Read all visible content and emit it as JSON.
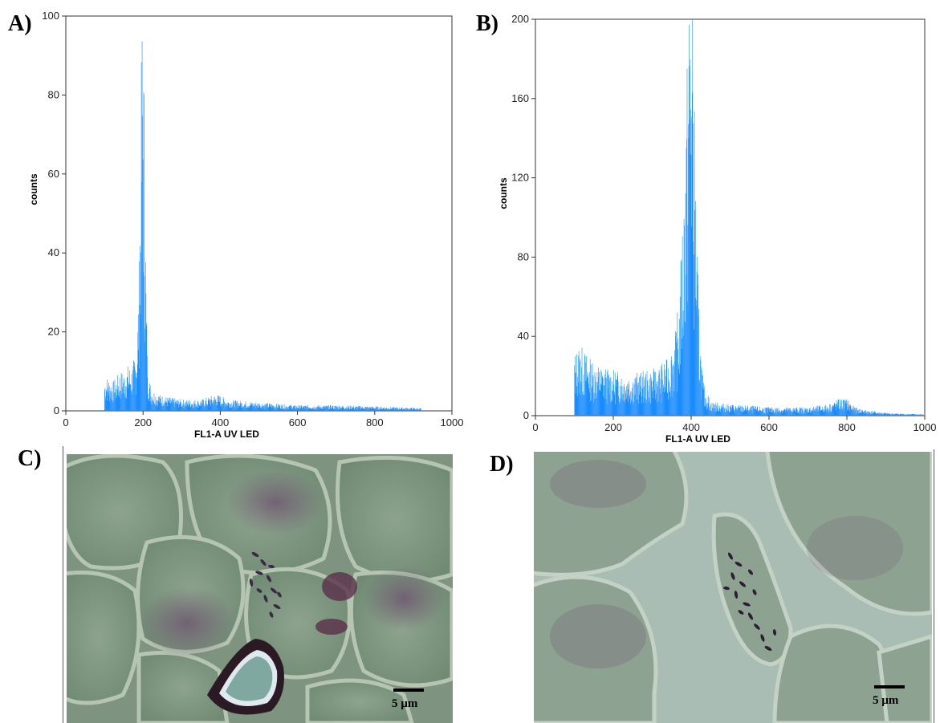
{
  "panel_labels": {
    "a": "A)",
    "b": "B)",
    "c": "C)",
    "d": "D)"
  },
  "colors": {
    "bar": "#1a8cff",
    "axis": "#333333"
  },
  "chart_data": [
    {
      "type": "bar",
      "panel": "A)",
      "xlabel": "FL1-A  UV LED",
      "ylabel": "counts",
      "xlim": [
        0,
        1000
      ],
      "ylim": [
        0,
        100
      ],
      "xticks": [
        0,
        200,
        400,
        600,
        800,
        1000
      ],
      "yticks": [
        0,
        20,
        40,
        60,
        80,
        100
      ],
      "grid": false,
      "data_range": [
        100,
        920
      ],
      "histogram_profile": [
        [
          100,
          6
        ],
        [
          110,
          6
        ],
        [
          120,
          5
        ],
        [
          130,
          6
        ],
        [
          140,
          7
        ],
        [
          150,
          7
        ],
        [
          160,
          8
        ],
        [
          170,
          8
        ],
        [
          180,
          10
        ],
        [
          185,
          15
        ],
        [
          190,
          30
        ],
        [
          193,
          48
        ],
        [
          196,
          68
        ],
        [
          198,
          75
        ],
        [
          200,
          72
        ],
        [
          202,
          60
        ],
        [
          205,
          40
        ],
        [
          208,
          20
        ],
        [
          212,
          8
        ],
        [
          220,
          4
        ],
        [
          240,
          3
        ],
        [
          260,
          2.5
        ],
        [
          300,
          2
        ],
        [
          350,
          2
        ],
        [
          390,
          3
        ],
        [
          420,
          2
        ],
        [
          500,
          1.5
        ],
        [
          600,
          1
        ],
        [
          700,
          1
        ],
        [
          800,
          0.8
        ],
        [
          920,
          0.5
        ]
      ]
    },
    {
      "type": "bar",
      "panel": "B)",
      "xlabel": "FL1-A  UV LED",
      "ylabel": "counts",
      "xlim": [
        0,
        1000
      ],
      "ylim": [
        0,
        200
      ],
      "xticks": [
        0,
        200,
        400,
        600,
        800,
        1000
      ],
      "yticks": [
        0,
        40,
        80,
        120,
        160,
        200
      ],
      "grid": false,
      "data_range": [
        100,
        1000
      ],
      "histogram_profile": [
        [
          100,
          22
        ],
        [
          110,
          25
        ],
        [
          120,
          24
        ],
        [
          140,
          20
        ],
        [
          160,
          18
        ],
        [
          180,
          17
        ],
        [
          200,
          16
        ],
        [
          250,
          15
        ],
        [
          300,
          16
        ],
        [
          340,
          20
        ],
        [
          360,
          30
        ],
        [
          370,
          45
        ],
        [
          380,
          80
        ],
        [
          390,
          130
        ],
        [
          395,
          165
        ],
        [
          398,
          172
        ],
        [
          402,
          150
        ],
        [
          408,
          110
        ],
        [
          415,
          60
        ],
        [
          420,
          35
        ],
        [
          430,
          12
        ],
        [
          450,
          5
        ],
        [
          500,
          4
        ],
        [
          600,
          3
        ],
        [
          700,
          3
        ],
        [
          750,
          4
        ],
        [
          780,
          6
        ],
        [
          800,
          6
        ],
        [
          820,
          3
        ],
        [
          850,
          2
        ],
        [
          900,
          1
        ],
        [
          1000,
          0.5
        ]
      ]
    }
  ],
  "micrographs": {
    "c": {
      "scale_label": "5 µm"
    },
    "d": {
      "scale_label": "5 µm"
    }
  }
}
